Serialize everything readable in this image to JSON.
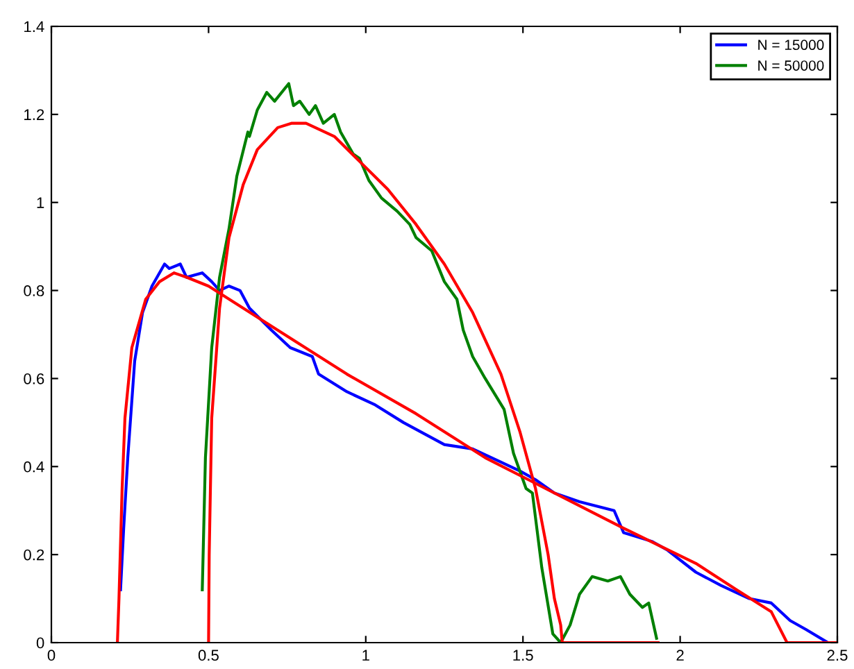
{
  "chart_data": {
    "type": "line",
    "xlim": [
      0,
      2.5
    ],
    "ylim": [
      0,
      1.4
    ],
    "xticks": [
      {
        "value": 0,
        "label": "0"
      },
      0.5,
      {
        "value": 1,
        "label": "1"
      },
      1.5,
      {
        "value": 2,
        "label": "2"
      },
      2.5
    ],
    "yticks": [
      {
        "value": 0,
        "label": "0"
      },
      0.2,
      0.4,
      0.6,
      0.8,
      {
        "value": 1,
        "label": "1"
      },
      1.2,
      1.4
    ],
    "grid": false,
    "legend": "top right",
    "marker": "none",
    "line_style": "solid",
    "series": [
      {
        "name": "N = 15000",
        "color": "#0000ff",
        "x": [
          0.22,
          0.23,
          0.243,
          0.265,
          0.29,
          0.32,
          0.36,
          0.375,
          0.41,
          0.43,
          0.48,
          0.51,
          0.535,
          0.565,
          0.6,
          0.63,
          0.7,
          0.76,
          0.83,
          0.85,
          0.94,
          1.03,
          1.12,
          1.25,
          1.34,
          1.43,
          1.49,
          1.54,
          1.6,
          1.68,
          1.79,
          1.82,
          1.91,
          1.96,
          2.05,
          2.13,
          2.22,
          2.29,
          2.35,
          2.4,
          2.47
        ],
        "values": [
          0.12,
          0.26,
          0.42,
          0.64,
          0.75,
          0.81,
          0.86,
          0.85,
          0.86,
          0.83,
          0.84,
          0.82,
          0.8,
          0.81,
          0.8,
          0.76,
          0.71,
          0.67,
          0.65,
          0.61,
          0.57,
          0.54,
          0.5,
          0.45,
          0.44,
          0.41,
          0.39,
          0.37,
          0.34,
          0.32,
          0.3,
          0.25,
          0.23,
          0.21,
          0.16,
          0.13,
          0.1,
          0.09,
          0.05,
          0.03,
          0
        ]
      },
      {
        "name": "N = 50000",
        "color": "#008000",
        "x": [
          0.48,
          0.49,
          0.51,
          0.535,
          0.565,
          0.59,
          0.625,
          0.63,
          0.655,
          0.685,
          0.71,
          0.755,
          0.77,
          0.79,
          0.82,
          0.84,
          0.865,
          0.9,
          0.92,
          0.96,
          0.98,
          1.01,
          1.05,
          1.1,
          1.14,
          1.16,
          1.21,
          1.25,
          1.29,
          1.31,
          1.34,
          1.38,
          1.44,
          1.47,
          1.51,
          1.53,
          1.56,
          1.595,
          1.62,
          1.65,
          1.68,
          1.72,
          1.77,
          1.81,
          1.84,
          1.88,
          1.9,
          1.925
        ],
        "values": [
          0.12,
          0.42,
          0.67,
          0.83,
          0.94,
          1.06,
          1.16,
          1.15,
          1.21,
          1.25,
          1.23,
          1.27,
          1.22,
          1.23,
          1.2,
          1.22,
          1.18,
          1.2,
          1.16,
          1.11,
          1.1,
          1.05,
          1.01,
          0.98,
          0.95,
          0.92,
          0.89,
          0.82,
          0.78,
          0.71,
          0.65,
          0.6,
          0.53,
          0.43,
          0.35,
          0.34,
          0.17,
          0.02,
          0,
          0.04,
          0.11,
          0.15,
          0.14,
          0.15,
          0.11,
          0.08,
          0.09,
          0.01
        ]
      },
      {
        "color": "#ff0000",
        "x": [
          0.21,
          0.215,
          0.225,
          0.234,
          0.256,
          0.3,
          0.344,
          0.39,
          0.43,
          0.5,
          0.61,
          0.72,
          0.94,
          1.16,
          1.38,
          1.6,
          1.82,
          2.05,
          2.18,
          2.29,
          2.34,
          2.5
        ],
        "values": [
          0,
          0.1,
          0.35,
          0.51,
          0.67,
          0.78,
          0.82,
          0.84,
          0.83,
          0.81,
          0.76,
          0.71,
          0.61,
          0.52,
          0.42,
          0.34,
          0.26,
          0.18,
          0.12,
          0.07,
          0,
          0
        ]
      },
      {
        "color": "#ff0000",
        "x": [
          0.5,
          0.502,
          0.51,
          0.535,
          0.565,
          0.61,
          0.655,
          0.72,
          0.765,
          0.81,
          0.9,
          0.985,
          1.07,
          1.16,
          1.25,
          1.34,
          1.43,
          1.49,
          1.54,
          1.58,
          1.6,
          1.62,
          1.625,
          1.93
        ],
        "values": [
          0,
          0.2,
          0.51,
          0.76,
          0.92,
          1.04,
          1.12,
          1.17,
          1.18,
          1.18,
          1.15,
          1.09,
          1.03,
          0.95,
          0.86,
          0.75,
          0.61,
          0.48,
          0.35,
          0.2,
          0.1,
          0.04,
          0,
          0
        ]
      }
    ]
  }
}
